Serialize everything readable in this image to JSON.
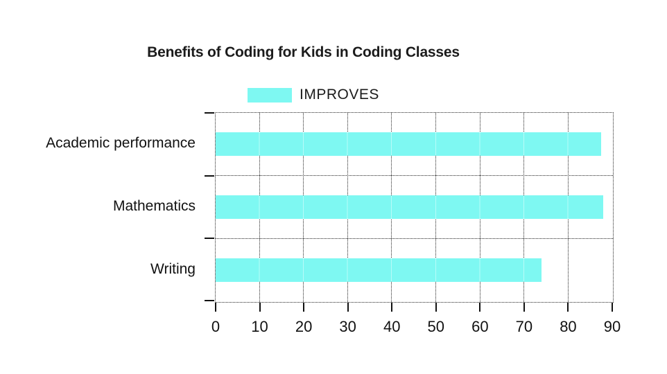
{
  "title": "Benefits of Coding for Kids in Coding Classes",
  "legend": {
    "label": "IMPROVES"
  },
  "colors": {
    "bar": "#7EF8F2",
    "text": "#1b1b1b",
    "grid": "#222222",
    "background": "#ffffff"
  },
  "chart_data": {
    "type": "bar",
    "orientation": "horizontal",
    "title": "Benefits of Coding for Kids in Coding Classes",
    "categories": [
      "Academic performance",
      "Mathematics",
      "Writing"
    ],
    "series": [
      {
        "name": "IMPROVES",
        "color": "#7EF8F2",
        "values": [
          87.5,
          88,
          74
        ]
      }
    ],
    "xlabel": "",
    "ylabel": "",
    "xlim": [
      0,
      90
    ],
    "xticks": [
      0,
      10,
      20,
      30,
      40,
      50,
      60,
      70,
      80,
      90
    ],
    "grid": true,
    "grid_style": "dotted",
    "legend_position": "top-center"
  }
}
